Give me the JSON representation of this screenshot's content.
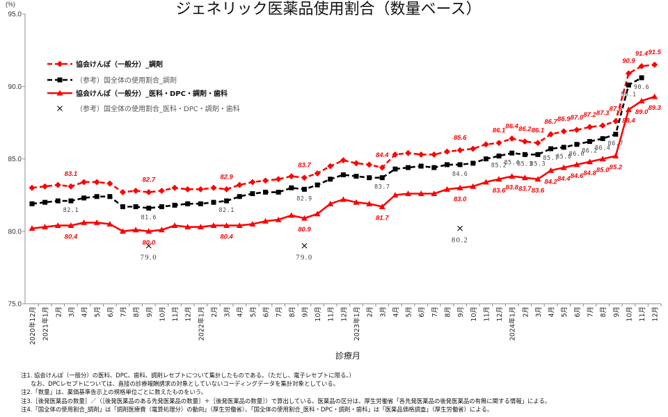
{
  "chart_data": {
    "type": "line",
    "title": "ジェネリック医薬品使用割合（数量ベース）",
    "ylabel": "(%)",
    "xlabel": "診療月",
    "ylim": [
      75,
      95
    ],
    "yticks": [
      "75.0",
      "80.0",
      "85.0",
      "90.0",
      "95.0"
    ],
    "grid": false,
    "legend_position": "top-left",
    "categories": [
      "2020年12月",
      "2021年1月",
      "2月",
      "3月",
      "4月",
      "5月",
      "6月",
      "7月",
      "8月",
      "9月",
      "10月",
      "11月",
      "12月",
      "2022年1月",
      "2月",
      "3月",
      "4月",
      "5月",
      "6月",
      "7月",
      "8月",
      "9月",
      "10月",
      "11月",
      "12月",
      "2023年1月",
      "2月",
      "3月",
      "4月",
      "5月",
      "6月",
      "7月",
      "8月",
      "9月",
      "10月",
      "11月",
      "12月",
      "2024年1月",
      "2月",
      "3月",
      "4月",
      "5月",
      "6月",
      "7月",
      "8月",
      "9月",
      "10月",
      "11月",
      "12月"
    ],
    "series": [
      {
        "name": "協会けんぽ（一般分）_調剤",
        "color": "#ff0000",
        "line": "dashed",
        "marker": "diamond",
        "values": [
          83.0,
          83.1,
          83.2,
          83.1,
          83.4,
          83.4,
          83.3,
          82.7,
          82.8,
          82.7,
          82.8,
          83.0,
          82.9,
          82.9,
          83.0,
          82.9,
          83.2,
          83.4,
          83.5,
          83.6,
          83.8,
          83.7,
          84.0,
          84.5,
          84.9,
          84.7,
          84.6,
          84.4,
          85.3,
          85.4,
          85.3,
          85.3,
          85.5,
          85.6,
          85.7,
          86.0,
          86.1,
          86.4,
          86.2,
          86.1,
          86.7,
          86.9,
          87.0,
          87.2,
          87.3,
          87.6,
          90.9,
          91.4,
          91.5
        ],
        "point_labels": {
          "3": "83.1",
          "9": "82.7",
          "15": "82.9",
          "21": "83.7",
          "27": "84.4",
          "33": "85.6",
          "36": "86.1",
          "37": "86.4",
          "38": "86.2",
          "39": "86.1",
          "40": "86.7",
          "41": "86.9",
          "42": "87.0",
          "43": "87.2",
          "44": "87.3",
          "45": "87.6",
          "46": "90.9",
          "47": "91.4",
          "48": "91.5"
        }
      },
      {
        "name": "（参考）国全体の使用割合_調剤",
        "color": "#000000",
        "line": "dashed",
        "marker": "square",
        "values": [
          81.9,
          82.0,
          82.1,
          82.1,
          82.3,
          82.4,
          82.4,
          81.7,
          81.7,
          81.6,
          81.7,
          81.8,
          81.9,
          81.9,
          82.0,
          82.1,
          82.4,
          82.6,
          82.7,
          82.7,
          83.0,
          82.9,
          83.2,
          83.6,
          83.9,
          83.8,
          83.7,
          83.7,
          84.3,
          84.4,
          84.5,
          84.4,
          84.6,
          84.6,
          84.7,
          85.0,
          85.2,
          85.4,
          85.3,
          85.3,
          85.7,
          85.8,
          86.0,
          86.2,
          86.4,
          86.7,
          90.1,
          90.6,
          null
        ],
        "point_labels": {
          "3": "82.1",
          "9": "81.6",
          "15": "82.1",
          "21": "82.9",
          "27": "83.7",
          "33": "84.6",
          "36": "85.2",
          "37": "85.4",
          "38": "85.3",
          "39": "85.3",
          "40": "85.7",
          "41": "85.8",
          "42": "86.0",
          "43": "86.2",
          "44": "86.4",
          "45": "86.7",
          "46": "90.1",
          "47": "90.6"
        }
      },
      {
        "name": "協会けんぽ（一般分）_医科・DPC・調剤・歯科",
        "color": "#ff0000",
        "line": "solid",
        "marker": "triangle",
        "values": [
          80.2,
          80.3,
          80.4,
          80.4,
          80.6,
          80.6,
          80.5,
          80.0,
          80.1,
          80.0,
          80.1,
          80.4,
          80.3,
          80.3,
          80.4,
          80.4,
          80.4,
          80.5,
          80.7,
          80.8,
          81.1,
          80.9,
          81.2,
          81.9,
          82.2,
          82.0,
          81.9,
          81.7,
          82.5,
          82.6,
          82.6,
          82.6,
          82.9,
          83.0,
          83.1,
          83.4,
          83.6,
          83.8,
          83.7,
          83.6,
          84.2,
          84.4,
          84.6,
          84.8,
          85.0,
          85.2,
          88.4,
          89.0,
          89.3
        ],
        "point_labels": {
          "3": "80.4",
          "9": "80.0",
          "15": "80.4",
          "21": "80.9",
          "27": "81.7",
          "33": "83.0",
          "36": "83.6",
          "37": "83.8",
          "38": "83.7",
          "39": "83.6",
          "40": "84.2",
          "41": "84.4",
          "42": "84.6",
          "43": "84.8",
          "44": "85.0",
          "45": "85.2",
          "46": "88.4",
          "47": "89.0",
          "48": "89.3"
        }
      },
      {
        "name": "（参考）国全体の使用割合_医科・DPC・調剤・歯科",
        "color": "#000000",
        "line": "none",
        "marker": "x",
        "values": [
          null,
          null,
          null,
          null,
          null,
          null,
          null,
          null,
          null,
          79.0,
          null,
          null,
          null,
          null,
          null,
          null,
          null,
          null,
          null,
          null,
          null,
          79.0,
          null,
          null,
          null,
          null,
          null,
          null,
          null,
          null,
          null,
          null,
          null,
          80.2,
          null,
          null,
          null,
          null,
          null,
          null,
          null,
          null,
          null,
          null,
          null,
          null,
          null,
          null,
          null
        ],
        "point_labels": {
          "9": "79.0",
          "21": "79.0",
          "33": "80.2"
        }
      }
    ]
  },
  "notes": [
    "注1. 協会けんぽ（一般分）の医科、DPC、歯科、調剤レセプトについて集計したものである。（ただし、電子レセプトに限る。）",
    "なお、DPCレセプトについては、直接の診療報酬請求の対象としていないコーディングデータを集計対象としている。",
    "注2.「数量」は、薬価基準告示上の規格単位ごとに数えたものをいう。",
    "注3.［後発医薬品の数量］／（［後発医薬品のある先発医薬品の数量］＋［後発医薬品の数量］）で算出している。医薬品の区分は、厚生労働省「各先発医薬品の後発医薬品の有無に関する情報」による。",
    "注4.「国全体の使用割合_調剤」は「調剤医療費（電算処理分）の動向」（厚生労働省）、「国全体の使用割合_医科・DPC・調剤・歯科」は「医薬品価格調査」（厚生労働省）による。"
  ]
}
